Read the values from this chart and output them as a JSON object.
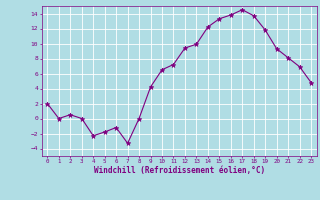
{
  "x": [
    0,
    1,
    2,
    3,
    4,
    5,
    6,
    7,
    8,
    9,
    10,
    11,
    12,
    13,
    14,
    15,
    16,
    17,
    18,
    19,
    20,
    21,
    22,
    23
  ],
  "y": [
    2,
    0,
    0.5,
    0,
    -2.3,
    -1.8,
    -1.2,
    -3.3,
    0,
    4.2,
    6.5,
    7.2,
    9.4,
    9.9,
    12.2,
    13.3,
    13.8,
    14.5,
    13.7,
    11.8,
    9.3,
    8.1,
    6.9,
    4.8
  ],
  "line_color": "#800080",
  "marker_color": "#800080",
  "bg_color": "#b0dde4",
  "grid_color": "#ffffff",
  "xlabel": "Windchill (Refroidissement éolien,°C)",
  "xlabel_color": "#800080",
  "tick_color": "#800080",
  "ylim": [
    -5,
    15
  ],
  "xlim": [
    -0.5,
    23.5
  ],
  "yticks": [
    -4,
    -2,
    0,
    2,
    4,
    6,
    8,
    10,
    12,
    14
  ],
  "xticks": [
    0,
    1,
    2,
    3,
    4,
    5,
    6,
    7,
    8,
    9,
    10,
    11,
    12,
    13,
    14,
    15,
    16,
    17,
    18,
    19,
    20,
    21,
    22,
    23
  ],
  "figsize": [
    3.2,
    2.0
  ],
  "dpi": 100
}
